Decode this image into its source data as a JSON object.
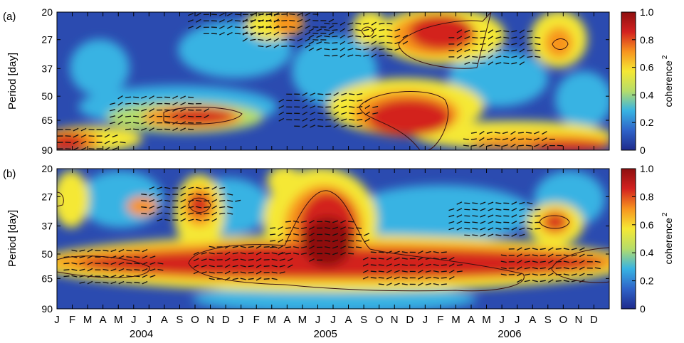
{
  "chart_data": [
    {
      "type": "heatmap",
      "panel_label": "(a)",
      "ylabel": "Period [day]",
      "y_ticks": [
        20,
        27,
        37,
        50,
        65,
        90
      ],
      "y_scale": "log2-reversed",
      "ylim": [
        20,
        90
      ],
      "colorbar": {
        "label": "coherence",
        "label_superscript": "2",
        "ticks": [
          "0",
          "0.2",
          "0.4",
          "0.6",
          "0.8",
          "1.0"
        ],
        "range": [
          0,
          1
        ]
      },
      "colormap": [
        "#1e2a8c",
        "#2f63c8",
        "#37b3e3",
        "#b5dd6a",
        "#f5e834",
        "#f7941f",
        "#d3211f",
        "#8e0f0f"
      ],
      "high_coherence_regions": [
        {
          "center_month": 6.5,
          "center_period": 60,
          "value": 0.9
        },
        {
          "center_month": 19.5,
          "center_period": 27,
          "value": 0.95
        },
        {
          "center_month": 17.5,
          "center_period": 58,
          "value": 0.9
        },
        {
          "center_month": 1,
          "center_period": 85,
          "value": 0.85
        },
        {
          "center_month": 29.5,
          "center_period": 88,
          "value": 0.85
        },
        {
          "center_month": 28.5,
          "center_period": 29,
          "value": 0.8
        },
        {
          "center_month": 11.5,
          "center_period": 21,
          "value": 0.8
        },
        {
          "center_month": 15,
          "center_period": 24,
          "value": 0.75
        }
      ]
    },
    {
      "type": "heatmap",
      "panel_label": "(b)",
      "ylabel": "Period [day]",
      "y_ticks": [
        20,
        27,
        37,
        50,
        65,
        90
      ],
      "y_scale": "log2-reversed",
      "ylim": [
        20,
        90
      ],
      "colorbar": {
        "label": "coherence",
        "label_superscript": "2",
        "ticks": [
          "0",
          "0.2",
          "0.4",
          "0.6",
          "0.8",
          "1.0"
        ],
        "range": [
          0,
          1
        ]
      },
      "colormap": [
        "#1e2a8c",
        "#2f63c8",
        "#37b3e3",
        "#b5dd6a",
        "#f5e834",
        "#f7941f",
        "#d3211f",
        "#8e0f0f"
      ],
      "high_coherence_regions": [
        {
          "center_month": 17,
          "center_period": 42,
          "value": 0.97
        },
        {
          "center_month": 12,
          "center_period": 55,
          "value": 0.95
        },
        {
          "center_month": 23,
          "center_period": 58,
          "value": 0.9
        },
        {
          "center_month": 3.5,
          "center_period": 57,
          "value": 0.9
        },
        {
          "center_month": 32,
          "center_period": 56,
          "value": 0.9
        },
        {
          "center_month": 8.5,
          "center_period": 29,
          "value": 0.85
        },
        {
          "center_month": 28.5,
          "center_period": 34,
          "value": 0.8
        }
      ]
    }
  ],
  "x_axis": {
    "months": [
      "J",
      "F",
      "M",
      "A",
      "M",
      "J",
      "J",
      "A",
      "S",
      "O",
      "N",
      "D",
      "J",
      "F",
      "M",
      "A",
      "M",
      "J",
      "J",
      "A",
      "S",
      "O",
      "N",
      "D",
      "J",
      "F",
      "M",
      "A",
      "M",
      "J",
      "J",
      "A",
      "S",
      "O",
      "N",
      "D"
    ],
    "years": [
      {
        "label": "2004",
        "center_month": 5.5
      },
      {
        "label": "2005",
        "center_month": 17.5
      },
      {
        "label": "2006",
        "center_month": 29.5
      }
    ]
  }
}
